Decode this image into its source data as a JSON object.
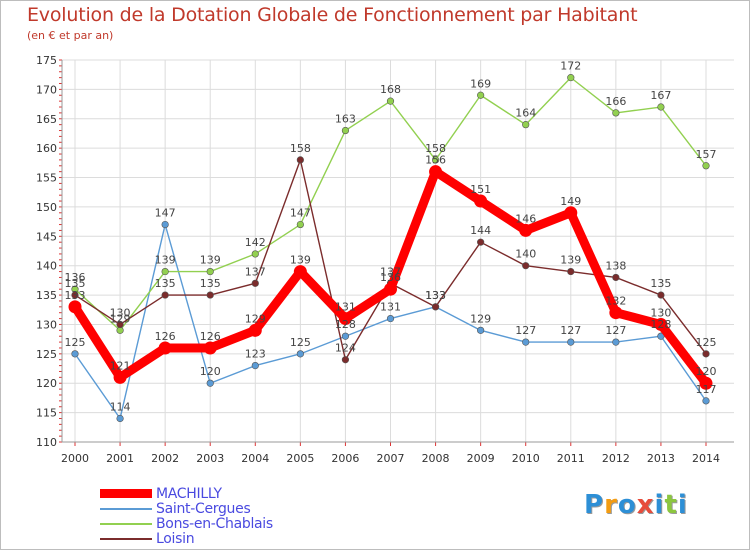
{
  "title": "Evolution de la Dotation Globale de Fonctionnement par Habitant",
  "subtitle": "(en € et par an)",
  "chart_data": {
    "type": "line",
    "x": [
      "2000",
      "2001",
      "2002",
      "2003",
      "2004",
      "2005",
      "2006",
      "2007",
      "2008",
      "2009",
      "2010",
      "2011",
      "2012",
      "2013",
      "2014"
    ],
    "ylim": [
      110,
      175
    ],
    "yticks": [
      110,
      115,
      120,
      125,
      130,
      135,
      140,
      145,
      150,
      155,
      160,
      165,
      170,
      175
    ],
    "grid": true,
    "legend_position": "bottom-left",
    "series": [
      {
        "name": "MACHILLY",
        "color": "#ff0000",
        "values": [
          133,
          121,
          126,
          126,
          129,
          139,
          131,
          136,
          156,
          151,
          146,
          149,
          132,
          130,
          120
        ]
      },
      {
        "name": "Saint-Cergues",
        "color": "#5b9bd5",
        "values": [
          125,
          114,
          147,
          120,
          123,
          125,
          128,
          131,
          133,
          129,
          127,
          127,
          127,
          128,
          117
        ]
      },
      {
        "name": "Bons-en-Chablais",
        "color": "#92d050",
        "values": [
          136,
          129,
          139,
          139,
          142,
          147,
          163,
          168,
          158,
          169,
          164,
          172,
          166,
          167,
          157
        ]
      },
      {
        "name": "Loisin",
        "color": "#7b2c2c",
        "values": [
          135,
          130,
          135,
          135,
          137,
          158,
          124,
          137,
          133,
          144,
          140,
          139,
          138,
          135,
          125
        ]
      }
    ]
  },
  "logo": {
    "letters": [
      "P",
      "r",
      "o",
      "x",
      "i",
      "t",
      "i"
    ],
    "colors": [
      "#2d8fd6",
      "#f39c12",
      "#2d8fd6",
      "#e74c3c",
      "#2d8fd6",
      "#8cc63f",
      "#2d8fd6"
    ]
  }
}
